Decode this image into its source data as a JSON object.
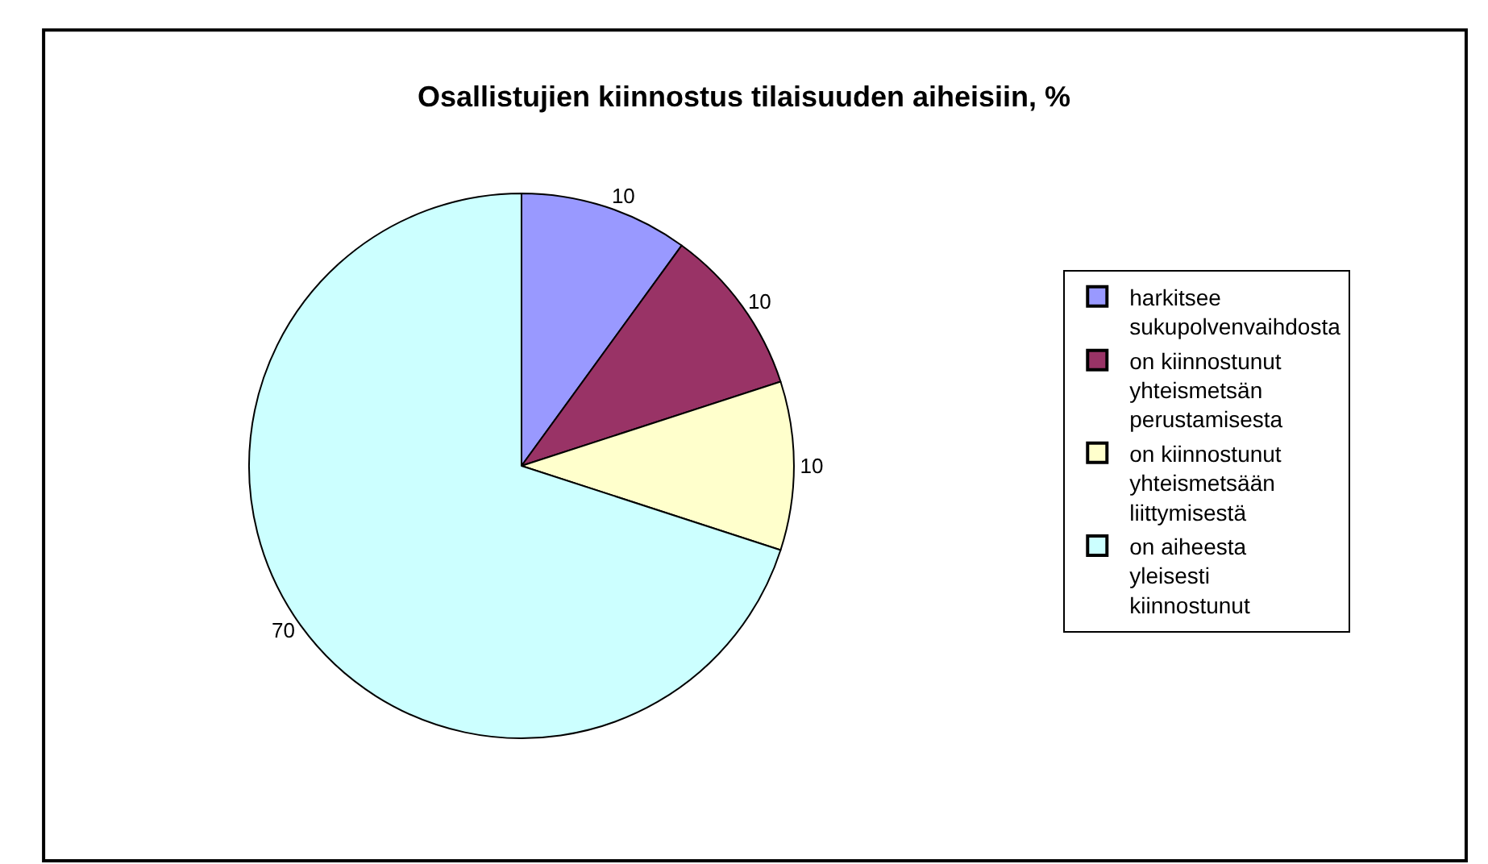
{
  "chart_data": {
    "type": "pie",
    "title": "Osallistujien kiinnostus tilaisuuden aiheisiin, %",
    "categories": [
      "harkitsee sukupolvenvaihdosta",
      "on kiinnostunut yhteismetsän perustamisesta",
      "on kiinnostunut yhteismetsään liittymisestä",
      "on aiheesta yleisesti kiinnostunut"
    ],
    "values": [
      10,
      10,
      10,
      70
    ],
    "colors": [
      "#9999ff",
      "#993366",
      "#ffffcc",
      "#ccffff"
    ],
    "data_labels": true,
    "legend": "right"
  }
}
